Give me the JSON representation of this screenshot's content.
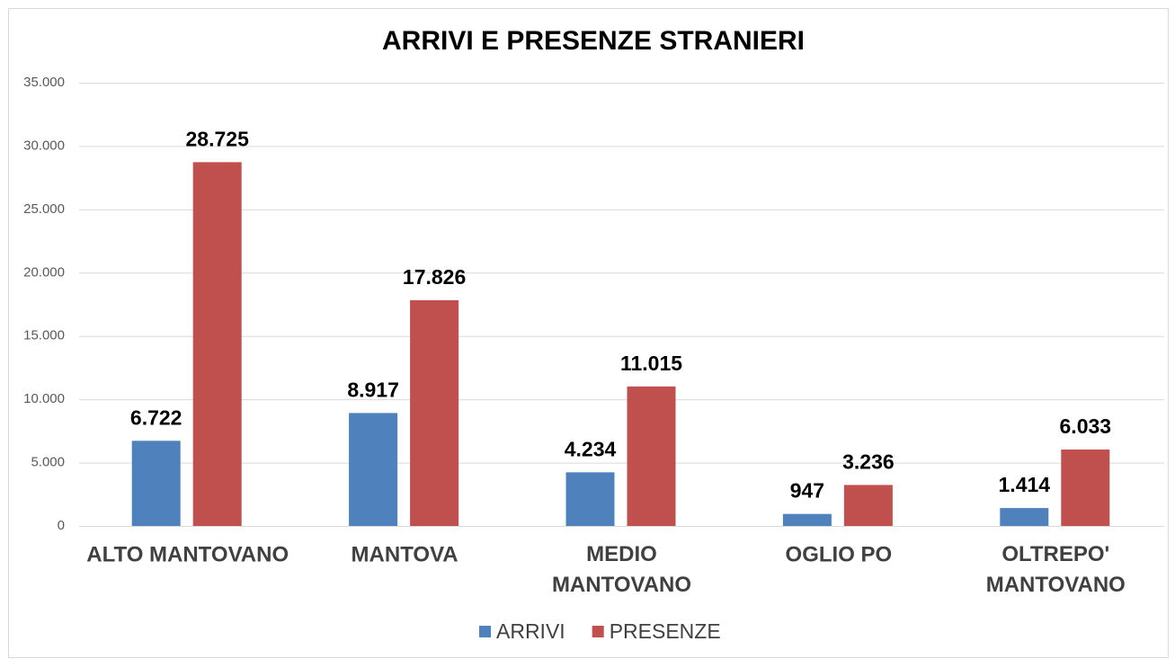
{
  "chart_data": {
    "type": "bar",
    "title": "ARRIVI E PRESENZE STRANIERI",
    "categories": [
      "ALTO MANTOVANO",
      "MANTOVA",
      "MEDIO MANTOVANO",
      "OGLIO PO",
      "OLTREPO' MANTOVANO"
    ],
    "series": [
      {
        "name": "ARRIVI",
        "color": "#4f81bd",
        "values": [
          6722,
          8917,
          4234,
          947,
          1414
        ],
        "value_labels": [
          "6.722",
          "8.917",
          "4.234",
          "947",
          "1.414"
        ]
      },
      {
        "name": "PRESENZE",
        "color": "#c0504d",
        "values": [
          28725,
          17826,
          11015,
          3236,
          6033
        ],
        "value_labels": [
          "28.725",
          "17.826",
          "11.015",
          "3.236",
          "6.033"
        ]
      }
    ],
    "ylim": [
      0,
      35000
    ],
    "yticks": [
      0,
      {
        "value": 5000,
        "label": "5.000"
      },
      {
        "value": 10000,
        "label": "10.000"
      },
      {
        "value": 15000,
        "label": "15.000"
      },
      {
        "value": 20000,
        "label": "20.000"
      },
      {
        "value": 25000,
        "label": "25.000"
      },
      {
        "value": 30000,
        "label": "30.000"
      },
      {
        "value": 35000,
        "label": "35.000"
      }
    ],
    "grid": true,
    "legend": "bottom"
  }
}
